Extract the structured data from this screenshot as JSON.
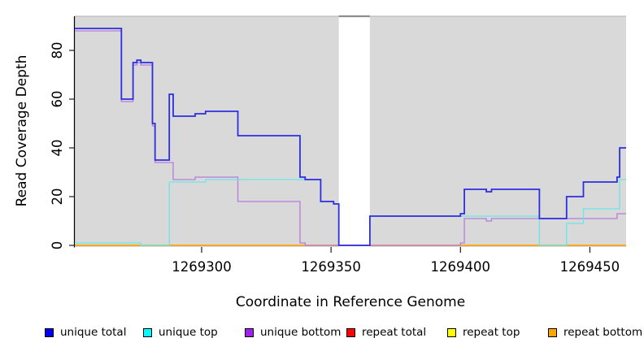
{
  "figure": {
    "background": "#FFFFFF"
  },
  "chart_data": {
    "type": "line",
    "subtype": "step",
    "title": "",
    "xlabel": "Coordinate in Reference Genome",
    "ylabel": "Read Coverage Depth",
    "xlim": [
      1269251,
      1269464
    ],
    "ylim": [
      0,
      94
    ],
    "plot_bg": "#D9D9D9",
    "grid": false,
    "legend_position": "bottom",
    "coverage_gap": {
      "from": 1269353,
      "to": 1269365
    },
    "x_ticks": [
      {
        "value": 1269300,
        "label": "1269300"
      },
      {
        "value": 1269350,
        "label": "1269350"
      },
      {
        "value": 1269400,
        "label": "1269400"
      },
      {
        "value": 1269450,
        "label": "1269450"
      }
    ],
    "y_ticks": [
      {
        "value": 0,
        "label": "0"
      },
      {
        "value": 20,
        "label": "20"
      },
      {
        "value": 40,
        "label": "40"
      },
      {
        "value": 60,
        "label": "60"
      },
      {
        "value": 80,
        "label": "80"
      }
    ],
    "series": [
      {
        "name": "unique total",
        "line_color": "#2D2DE1",
        "swatch_color": "#0000EE",
        "points": [
          [
            1269251,
            89
          ],
          [
            1269269,
            60
          ],
          [
            1269273.5,
            75
          ],
          [
            1269275,
            76
          ],
          [
            1269276.5,
            75
          ],
          [
            1269281,
            50
          ],
          [
            1269282,
            35
          ],
          [
            1269287.5,
            62
          ],
          [
            1269289,
            53
          ],
          [
            1269297.5,
            54
          ],
          [
            1269301.5,
            55
          ],
          [
            1269314,
            45
          ],
          [
            1269338,
            28
          ],
          [
            1269340,
            27
          ],
          [
            1269346,
            18
          ],
          [
            1269351,
            17
          ],
          [
            1269353,
            0
          ],
          [
            1269365,
            12
          ],
          [
            1269400,
            13
          ],
          [
            1269401.5,
            23
          ],
          [
            1269410,
            22
          ],
          [
            1269412,
            23
          ],
          [
            1269430.5,
            11
          ],
          [
            1269441,
            20
          ],
          [
            1269447.5,
            26
          ],
          [
            1269460.5,
            28
          ],
          [
            1269461.5,
            40
          ]
        ]
      },
      {
        "name": "unique top",
        "line_color": "#67E7E7",
        "swatch_color": "#00FFFF",
        "points": [
          [
            1269251,
            1
          ],
          [
            1269276.5,
            0
          ],
          [
            1269287.5,
            26
          ],
          [
            1269301.5,
            27
          ],
          [
            1269346,
            18
          ],
          [
            1269351,
            17
          ],
          [
            1269353,
            0
          ],
          [
            1269365,
            12
          ],
          [
            1269430.5,
            0
          ],
          [
            1269441,
            9
          ],
          [
            1269447.5,
            15
          ],
          [
            1269461.5,
            27
          ]
        ]
      },
      {
        "name": "unique bottom",
        "line_color": "#B57CDC",
        "swatch_color": "#A020F0",
        "points": [
          [
            1269251,
            88
          ],
          [
            1269269,
            59
          ],
          [
            1269273.5,
            74
          ],
          [
            1269275,
            75
          ],
          [
            1269276.5,
            74
          ],
          [
            1269281,
            49
          ],
          [
            1269282,
            34
          ],
          [
            1269289,
            27
          ],
          [
            1269297.5,
            28
          ],
          [
            1269314,
            18
          ],
          [
            1269338,
            1
          ],
          [
            1269340,
            0
          ],
          [
            1269400,
            1
          ],
          [
            1269401.5,
            11
          ],
          [
            1269410,
            10
          ],
          [
            1269412,
            11
          ],
          [
            1269460.5,
            13
          ]
        ]
      },
      {
        "name": "repeat total",
        "line_color": "#E02020",
        "swatch_color": "#FF0000",
        "points": [
          [
            1269251,
            0
          ]
        ]
      },
      {
        "name": "repeat top",
        "line_color": "#FFFF00",
        "swatch_color": "#FFFF00",
        "points": [
          [
            1269251,
            0
          ]
        ]
      },
      {
        "name": "repeat bottom",
        "line_color": "#FFA500",
        "swatch_color": "#FFA500",
        "points": [
          [
            1269251,
            0
          ]
        ]
      }
    ]
  }
}
